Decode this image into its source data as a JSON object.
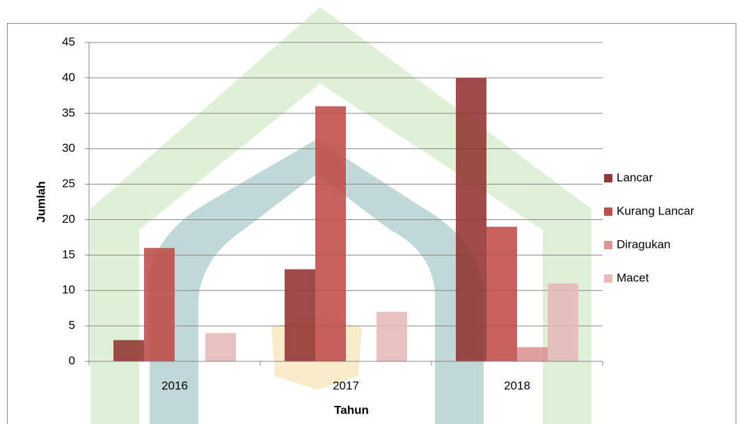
{
  "chart_data": {
    "type": "bar",
    "xlabel": "Tahun",
    "ylabel": "Jumlah",
    "categories": [
      "2016",
      "2017",
      "2018"
    ],
    "series": [
      {
        "name": "Lancar",
        "color": "#953735",
        "values": [
          3,
          13,
          40
        ]
      },
      {
        "name": "Kurang Lancar",
        "color": "#c0504d",
        "values": [
          16,
          36,
          19
        ]
      },
      {
        "name": "Diragukan",
        "color": "#d99694",
        "values": [
          0,
          0,
          2
        ]
      },
      {
        "name": "Macet",
        "color": "#e6b9b8",
        "values": [
          4,
          7,
          11
        ]
      }
    ],
    "ylim": [
      0,
      45
    ],
    "yticks": [
      0,
      5,
      10,
      15,
      20,
      25,
      30,
      35,
      40,
      45
    ],
    "grid": true,
    "legend": "right"
  }
}
